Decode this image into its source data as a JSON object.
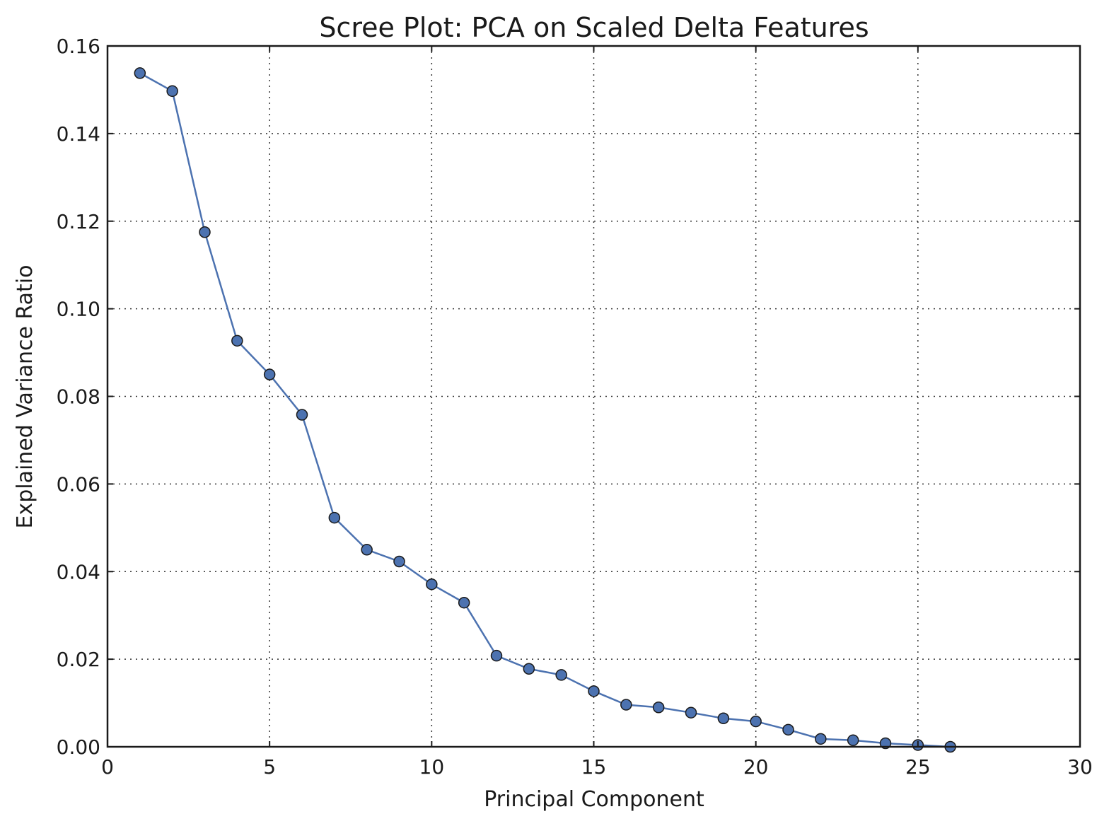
{
  "chart_data": {
    "type": "line",
    "title": "Scree Plot: PCA on Scaled Delta Features",
    "xlabel": "Principal Component",
    "ylabel": "Explained Variance Ratio",
    "xlim": [
      0,
      30
    ],
    "ylim": [
      0,
      0.16
    ],
    "xticks": [
      0,
      5,
      10,
      15,
      20,
      25,
      30
    ],
    "xtick_labels": [
      "0",
      "5",
      "10",
      "15",
      "20",
      "25",
      "30"
    ],
    "yticks": [
      0,
      0.02,
      0.04,
      0.06,
      0.08,
      0.1,
      0.12,
      0.14,
      0.16
    ],
    "ytick_labels": [
      "0.00",
      "0.02",
      "0.04",
      "0.06",
      "0.08",
      "0.10",
      "0.12",
      "0.14",
      "0.16"
    ],
    "grid": true,
    "markers": true,
    "series": [
      {
        "color": "#4c72b0",
        "x": [
          1,
          2,
          3,
          4,
          5,
          6,
          7,
          8,
          9,
          10,
          11,
          12,
          13,
          14,
          15,
          16,
          17,
          18,
          19,
          20,
          21,
          22,
          23,
          24,
          25,
          26
        ],
        "y": [
          0.1538,
          0.1497,
          0.1175,
          0.0927,
          0.085,
          0.0758,
          0.0523,
          0.045,
          0.0423,
          0.0371,
          0.0329,
          0.0208,
          0.0178,
          0.0164,
          0.0127,
          0.0096,
          0.009,
          0.0078,
          0.0065,
          0.0058,
          0.0039,
          0.0018,
          0.0015,
          0.0008,
          0.0004,
          0.0
        ]
      }
    ]
  }
}
